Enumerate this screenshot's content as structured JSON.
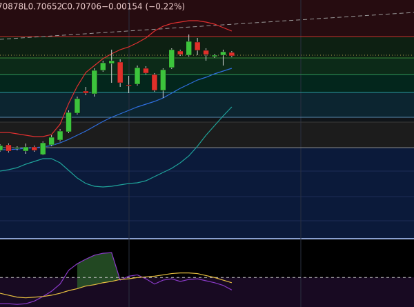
{
  "chart_data": [
    {
      "type": "candlestick",
      "header": [
        "70878",
        "L0.70652",
        "C0.70706",
        "−0.00154 (−0.22%)"
      ],
      "ylim": [
        0.62786,
        0.73136
      ],
      "up_color": "#3cc43c",
      "down_color": "#e0302a",
      "open": [
        0.66596,
        0.66836,
        0.66686,
        0.66566,
        0.66746,
        0.66416,
        0.66836,
        0.67046,
        0.67406,
        0.68216,
        0.69176,
        0.69056,
        0.70076,
        0.70376,
        0.70436,
        0.69446,
        0.69476,
        0.70166,
        0.69896,
        0.69206,
        0.70196,
        0.70916,
        0.70736,
        0.71306,
        0.70946,
        0.70676,
        0.70736,
        0.70856
      ],
      "high": [
        0.66866,
        0.66896,
        0.66776,
        0.66896,
        0.66806,
        0.66986,
        0.67256,
        0.67526,
        0.68336,
        0.68936,
        0.69356,
        0.70166,
        0.70496,
        0.70976,
        0.70556,
        0.69836,
        0.70286,
        0.70256,
        0.69956,
        0.70166,
        0.71036,
        0.70976,
        0.71636,
        0.71486,
        0.71036,
        0.70796,
        0.70976,
        0.70916
      ],
      "low": [
        0.66536,
        0.66506,
        0.66596,
        0.66446,
        0.66536,
        0.66386,
        0.66776,
        0.66986,
        0.67346,
        0.68156,
        0.68996,
        0.68936,
        0.70016,
        0.69536,
        0.69356,
        0.69086,
        0.69416,
        0.69896,
        0.69146,
        0.68876,
        0.70136,
        0.70706,
        0.70676,
        0.70736,
        0.70496,
        0.70616,
        0.70286,
        0.70646
      ],
      "close": [
        0.66806,
        0.66566,
        0.66716,
        0.66746,
        0.66596,
        0.66926,
        0.67166,
        0.67436,
        0.68246,
        0.68846,
        0.69086,
        0.70076,
        0.70406,
        0.70496,
        0.69536,
        0.69416,
        0.70196,
        0.69956,
        0.69206,
        0.70106,
        0.70976,
        0.70766,
        0.71336,
        0.70946,
        0.70766,
        0.70736,
        0.70886,
        0.70706
      ],
      "series": [
        {
          "color": "#e03030",
          "values": [
            0.67376,
            0.67376,
            0.67316,
            0.67256,
            0.67196,
            0.67196,
            0.67286,
            0.67736,
            0.68636,
            0.69386,
            0.69986,
            0.70286,
            0.70586,
            0.70796,
            0.70976,
            0.71096,
            0.71276,
            0.71486,
            0.71786,
            0.71996,
            0.72116,
            0.72176,
            0.72236,
            0.72236,
            0.72176,
            0.72086,
            0.71936,
            0.71786
          ]
        },
        {
          "color": "#2f6fe0",
          "values": [
            0.66626,
            0.66626,
            0.66656,
            0.66686,
            0.66716,
            0.66746,
            0.66806,
            0.66926,
            0.67076,
            0.67256,
            0.67436,
            0.67646,
            0.67856,
            0.68036,
            0.68186,
            0.68336,
            0.68486,
            0.68606,
            0.68726,
            0.68876,
            0.69086,
            0.69296,
            0.69476,
            0.69656,
            0.69776,
            0.69926,
            0.70046,
            0.70166
          ]
        },
        {
          "color": "#1fa39a",
          "values": [
            0.65696,
            0.65756,
            0.65846,
            0.65996,
            0.66116,
            0.66236,
            0.66236,
            0.66056,
            0.65726,
            0.65396,
            0.65156,
            0.65036,
            0.65006,
            0.65036,
            0.65096,
            0.65156,
            0.65186,
            0.65276,
            0.65456,
            0.65636,
            0.65816,
            0.66056,
            0.66356,
            0.66776,
            0.67256,
            0.67676,
            0.68096,
            0.68486
          ]
        }
      ],
      "levels": [
        {
          "value": 0.71546,
          "color": "#c8302c"
        },
        {
          "value": 0.70616,
          "color": "#3a8a3a"
        },
        {
          "value": 0.69896,
          "color": "#2f9a5a"
        },
        {
          "value": 0.69116,
          "color": "#2a9aa0"
        },
        {
          "value": 0.68036,
          "color": "#5a8ab0"
        },
        {
          "value": 0.67826,
          "color": "#3a3a3a"
        },
        {
          "value": 0.66716,
          "color": "#8a8a8a"
        }
      ],
      "dotted_level": 0.70736,
      "trendline": [
        0.71426,
        0.72596
      ]
    },
    {
      "type": "line",
      "ylim": [
        0,
        100
      ],
      "levels": [
        45
      ],
      "series": [
        {
          "color": "#8a3ac8",
          "values": [
            5,
            5,
            4,
            5,
            9,
            16,
            24,
            35,
            56,
            66,
            73,
            79,
            82,
            83,
            41,
            47,
            49,
            43,
            35,
            41,
            43,
            39,
            42,
            43,
            40,
            37,
            33,
            26
          ]
        },
        {
          "color": "#e8c040",
          "values": [
            21,
            18,
            15,
            14,
            15,
            16,
            18,
            21,
            25,
            28,
            32,
            34,
            37,
            39,
            42,
            43,
            45,
            46,
            47,
            49,
            51,
            52,
            52,
            51,
            48,
            45,
            41,
            37
          ]
        }
      ]
    }
  ]
}
